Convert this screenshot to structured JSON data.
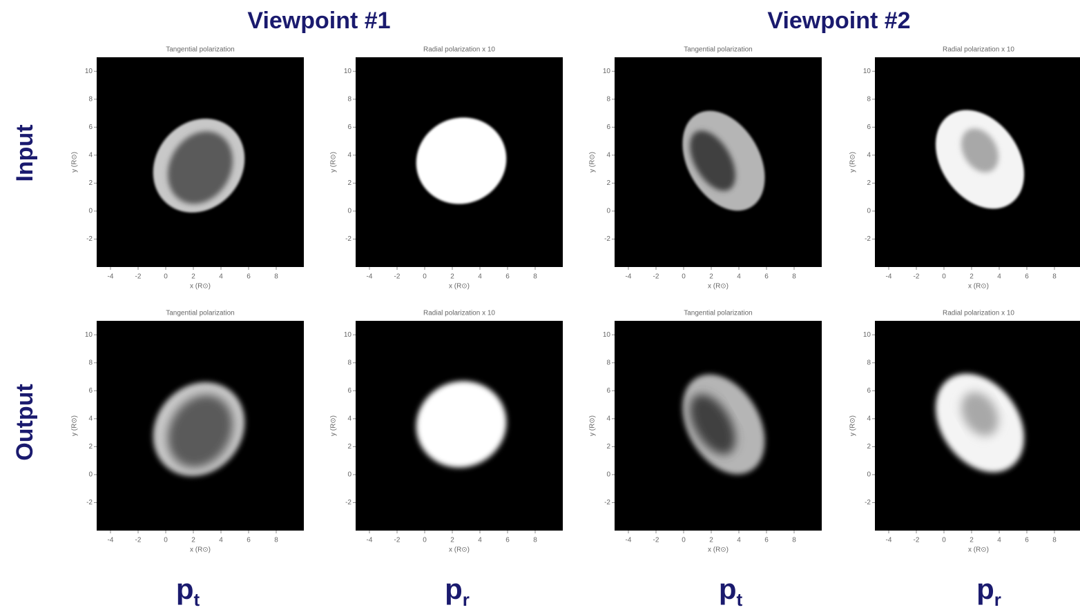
{
  "header": {
    "columns": [
      "Viewpoint #1",
      "Viewpoint #2"
    ]
  },
  "figure": {
    "rows": [
      {
        "label": "Input",
        "panels": [
          "Tangential polarization",
          "Radial polarization x 10",
          "Tangential polarization",
          "Radial polarization x 10"
        ]
      },
      {
        "label": "Output",
        "panels": [
          "Tangential polarization",
          "Radial polarization x 10",
          "Tangential polarization",
          "Radial polarization x 10"
        ]
      }
    ]
  },
  "axes": {
    "xlabel": "x (R⊙)",
    "ylabel": "y (R⊙)",
    "xlim": [
      -5,
      10
    ],
    "ylim": [
      -4,
      11
    ],
    "xticks": [
      -4,
      -2,
      0,
      2,
      4,
      6,
      8
    ],
    "yticks": [
      -2,
      0,
      2,
      4,
      6,
      8,
      10
    ]
  },
  "footer": {
    "labels": [
      {
        "main": "p",
        "sub": "t"
      },
      {
        "main": "p",
        "sub": "r"
      },
      {
        "main": "p",
        "sub": "t"
      },
      {
        "main": "p",
        "sub": "r"
      }
    ]
  }
}
